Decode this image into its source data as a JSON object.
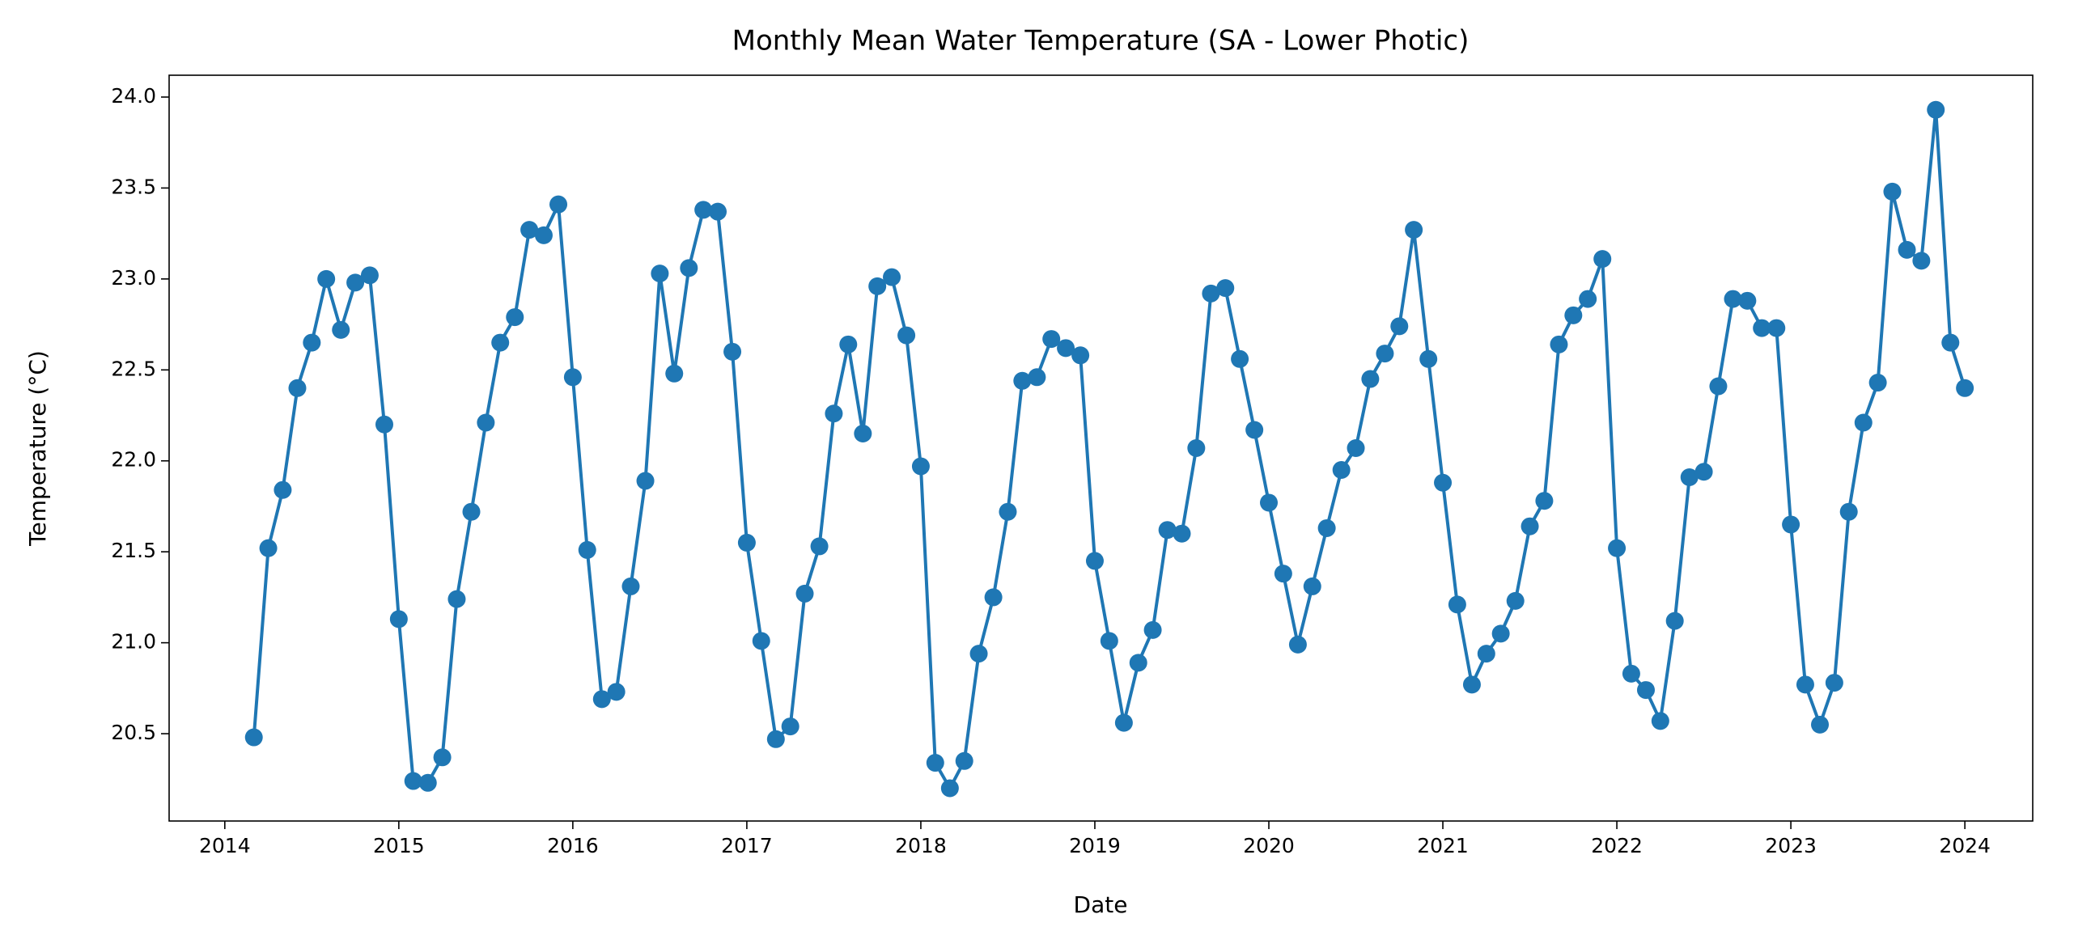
{
  "chart_data": {
    "type": "line",
    "title": "Monthly Mean Water Temperature (SA - Lower Photic)",
    "xlabel": "Date",
    "ylabel": "Temperature (°C)",
    "x": [
      2014.167,
      2014.25,
      2014.333,
      2014.417,
      2014.5,
      2014.583,
      2014.667,
      2014.75,
      2014.833,
      2014.917,
      2015.0,
      2015.083,
      2015.167,
      2015.25,
      2015.333,
      2015.417,
      2015.5,
      2015.583,
      2015.667,
      2015.75,
      2015.833,
      2015.917,
      2016.0,
      2016.083,
      2016.167,
      2016.25,
      2016.333,
      2016.417,
      2016.5,
      2016.583,
      2016.667,
      2016.75,
      2016.833,
      2016.917,
      2017.0,
      2017.083,
      2017.167,
      2017.25,
      2017.333,
      2017.417,
      2017.5,
      2017.583,
      2017.667,
      2017.75,
      2017.833,
      2017.917,
      2018.0,
      2018.083,
      2018.167,
      2018.25,
      2018.333,
      2018.417,
      2018.5,
      2018.583,
      2018.667,
      2018.75,
      2018.833,
      2018.917,
      2019.0,
      2019.083,
      2019.167,
      2019.25,
      2019.333,
      2019.417,
      2019.5,
      2019.583,
      2019.667,
      2019.75,
      2019.833,
      2019.917,
      2020.0,
      2020.083,
      2020.167,
      2020.25,
      2020.333,
      2020.417,
      2020.5,
      2020.583,
      2020.667,
      2020.75,
      2020.833,
      2020.917,
      2021.0,
      2021.083,
      2021.167,
      2021.25,
      2021.333,
      2021.417,
      2021.5,
      2021.583,
      2021.667,
      2021.75,
      2021.833,
      2021.917,
      2022.0,
      2022.083,
      2022.167,
      2022.25,
      2022.333,
      2022.417,
      2022.5,
      2022.583,
      2022.667,
      2022.75,
      2022.833,
      2022.917,
      2023.0,
      2023.083,
      2023.167,
      2023.25,
      2023.333,
      2023.417,
      2023.5,
      2023.583,
      2023.667,
      2023.75,
      2023.833,
      2023.917,
      2024.0
    ],
    "series": [
      {
        "name": "Temperature",
        "color": "#1f77b4",
        "values": [
          20.48,
          21.52,
          21.84,
          22.4,
          22.65,
          23.0,
          22.72,
          22.98,
          23.02,
          22.2,
          21.13,
          20.24,
          20.23,
          20.37,
          21.24,
          21.72,
          22.21,
          22.65,
          22.79,
          23.27,
          23.24,
          23.41,
          22.46,
          21.51,
          20.69,
          20.73,
          21.31,
          21.89,
          23.03,
          22.48,
          23.06,
          23.38,
          23.37,
          22.6,
          21.55,
          21.01,
          20.47,
          20.54,
          21.27,
          21.53,
          22.26,
          22.64,
          22.15,
          22.96,
          23.01,
          22.69,
          21.97,
          20.34,
          20.2,
          20.35,
          20.94,
          21.25,
          21.72,
          22.44,
          22.46,
          22.67,
          22.62,
          22.58,
          21.45,
          21.01,
          20.56,
          20.89,
          21.07,
          21.62,
          21.6,
          22.07,
          22.92,
          22.95,
          22.56,
          22.17,
          21.77,
          21.38,
          20.99,
          21.31,
          21.63,
          21.95,
          22.07,
          22.45,
          22.59,
          22.74,
          23.27,
          22.56,
          21.88,
          21.21,
          20.77,
          20.94,
          21.05,
          21.23,
          21.64,
          21.78,
          22.64,
          22.8,
          22.89,
          23.11,
          21.52,
          20.83,
          20.74,
          20.57,
          21.12,
          21.91,
          21.94,
          22.41,
          22.89,
          22.88,
          22.73,
          22.73,
          21.65,
          20.77,
          20.55,
          20.78,
          21.72,
          22.21,
          22.43,
          23.48,
          23.16,
          23.1,
          23.93,
          22.65,
          22.4
        ]
      }
    ],
    "xlim": [
      2013.68,
      2024.39
    ],
    "xticks": [
      2014,
      2015,
      2016,
      2017,
      2018,
      2019,
      2020,
      2021,
      2022,
      2023,
      2024
    ],
    "ylim": [
      20.02,
      24.12
    ],
    "yticks": [
      {
        "value": 20.5,
        "label": "20.5"
      },
      {
        "value": 21,
        "label": "21.0"
      },
      {
        "value": 21.5,
        "label": "21.5"
      },
      {
        "value": 22,
        "label": "22.0"
      },
      {
        "value": 22.5,
        "label": "22.5"
      },
      {
        "value": 23,
        "label": "23.0"
      },
      {
        "value": 23.5,
        "label": "23.5"
      },
      {
        "value": 24,
        "label": "24.0"
      }
    ],
    "grid": false
  }
}
